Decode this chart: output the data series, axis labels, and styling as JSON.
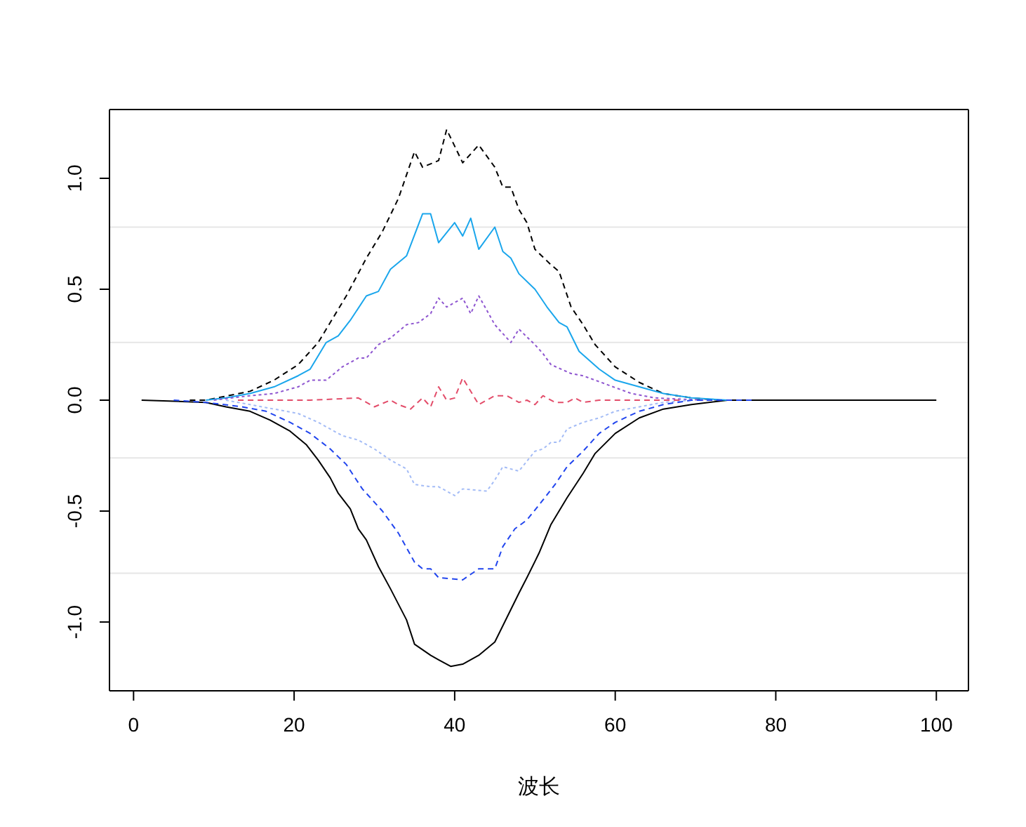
{
  "chart_data": {
    "type": "line",
    "xlabel": "波长",
    "xlim": [
      -3,
      104
    ],
    "xticks": [
      0,
      20,
      40,
      60,
      80,
      100
    ],
    "ylim": [
      -1.31,
      1.31
    ],
    "yticks": [
      {
        "value": -1,
        "label": "-1.0"
      },
      {
        "value": -0.5,
        "label": "-0.5"
      },
      {
        "value": 0,
        "label": "0.0"
      },
      {
        "value": 0.5,
        "label": "0.5"
      },
      {
        "value": 1,
        "label": "1.0"
      }
    ],
    "ref_lines": [
      {
        "axis": "y",
        "value": 0.78,
        "color": "#e6e6e6"
      },
      {
        "axis": "y",
        "value": 0.26,
        "color": "#e6e6e6"
      },
      {
        "axis": "y",
        "value": -0.26,
        "color": "#e6e6e6"
      },
      {
        "axis": "y",
        "value": -0.78,
        "color": "#e6e6e6"
      }
    ],
    "series": [
      {
        "color": "#000000",
        "line_style": "solid",
        "x": [
          1,
          9,
          11.5,
          14.5,
          17,
          19.5,
          21.5,
          23,
          24.5,
          25.5,
          27,
          28,
          29,
          30.5,
          32,
          34,
          35,
          37,
          38,
          39.5,
          41,
          43,
          45,
          46.5,
          48,
          49,
          50.5,
          52,
          54,
          56,
          57.5,
          60,
          63,
          66,
          69.5,
          74,
          100
        ],
        "values": [
          0,
          -0.01,
          -0.03,
          -0.05,
          -0.09,
          -0.14,
          -0.2,
          -0.27,
          -0.35,
          -0.42,
          -0.49,
          -0.58,
          -0.63,
          -0.75,
          -0.85,
          -0.99,
          -1.1,
          -1.15,
          -1.17,
          -1.2,
          -1.19,
          -1.15,
          -1.09,
          -0.98,
          -0.87,
          -0.8,
          -0.69,
          -0.56,
          -0.44,
          -0.33,
          -0.24,
          -0.15,
          -0.08,
          -0.04,
          -0.02,
          0,
          0
        ]
      },
      {
        "color": "#000000",
        "line_style": "dashed",
        "x": [
          7,
          9,
          14.5,
          17.5,
          20.5,
          23,
          26.5,
          29,
          31,
          33,
          35,
          36,
          38,
          39,
          41,
          43,
          45,
          46,
          47,
          48,
          49,
          50,
          52,
          53,
          54.5,
          56,
          57.5,
          60,
          63,
          66,
          69.5,
          73
        ],
        "values": [
          0,
          0,
          0.04,
          0.09,
          0.16,
          0.26,
          0.47,
          0.64,
          0.76,
          0.91,
          1.12,
          1.05,
          1.08,
          1.22,
          1.07,
          1.15,
          1.05,
          0.96,
          0.96,
          0.86,
          0.8,
          0.68,
          0.61,
          0.58,
          0.42,
          0.34,
          0.25,
          0.15,
          0.08,
          0.03,
          0.01,
          0
        ]
      },
      {
        "color": "#1aa6ec",
        "line_style": "solid",
        "x": [
          9,
          11.5,
          14.5,
          17.5,
          20.5,
          22,
          24,
          25.5,
          27,
          29,
          30.5,
          32,
          34,
          36,
          37,
          38,
          40,
          41,
          42,
          43,
          45,
          46,
          47,
          48,
          50,
          51.5,
          53,
          54,
          55.5,
          58,
          60,
          63,
          66,
          69.5,
          74
        ],
        "values": [
          0,
          0.01,
          0.03,
          0.06,
          0.11,
          0.14,
          0.26,
          0.29,
          0.36,
          0.47,
          0.49,
          0.59,
          0.65,
          0.84,
          0.84,
          0.71,
          0.8,
          0.74,
          0.82,
          0.68,
          0.78,
          0.67,
          0.64,
          0.57,
          0.5,
          0.42,
          0.35,
          0.33,
          0.22,
          0.14,
          0.09,
          0.06,
          0.03,
          0.01,
          0
        ]
      },
      {
        "color": "#8e55d0",
        "line_style": "dotted",
        "x": [
          10,
          14.5,
          17.5,
          20.5,
          22,
          24,
          26,
          28,
          29,
          30.5,
          32,
          34,
          35.5,
          37,
          38,
          39,
          41,
          42,
          43,
          45,
          47,
          48,
          50,
          51,
          52,
          54.5,
          56,
          59,
          62,
          65,
          71
        ],
        "values": [
          0,
          0.02,
          0.03,
          0.06,
          0.09,
          0.09,
          0.15,
          0.19,
          0.19,
          0.25,
          0.28,
          0.34,
          0.35,
          0.39,
          0.46,
          0.42,
          0.46,
          0.39,
          0.47,
          0.34,
          0.26,
          0.32,
          0.25,
          0.21,
          0.16,
          0.12,
          0.11,
          0.07,
          0.03,
          0.01,
          0
        ]
      },
      {
        "color": "#a4bcf6",
        "line_style": "dotted",
        "x": [
          11.5,
          14.5,
          17.5,
          20.5,
          23,
          26,
          28,
          30,
          32,
          34,
          35,
          37,
          38,
          40,
          41,
          44,
          45,
          46,
          48,
          50,
          51,
          52,
          53,
          54,
          56,
          58,
          60,
          63,
          66,
          69.5
        ],
        "values": [
          0,
          -0.02,
          -0.04,
          -0.06,
          -0.1,
          -0.16,
          -0.18,
          -0.22,
          -0.27,
          -0.31,
          -0.38,
          -0.39,
          -0.39,
          -0.43,
          -0.4,
          -0.41,
          -0.36,
          -0.3,
          -0.32,
          -0.23,
          -0.22,
          -0.19,
          -0.19,
          -0.13,
          -0.1,
          -0.08,
          -0.05,
          -0.03,
          -0.01,
          0
        ]
      },
      {
        "color": "#2145ee",
        "line_style": "dashed",
        "x": [
          5,
          9,
          13.5,
          16.5,
          19.5,
          22,
          24.5,
          26.5,
          28.5,
          31,
          33,
          35,
          36,
          37,
          38,
          41,
          43,
          45,
          46,
          47.5,
          49,
          51,
          52.5,
          54,
          56,
          58,
          60,
          63,
          66,
          69.5,
          77
        ],
        "values": [
          0,
          -0.01,
          -0.03,
          -0.05,
          -0.1,
          -0.15,
          -0.22,
          -0.29,
          -0.4,
          -0.5,
          -0.6,
          -0.73,
          -0.76,
          -0.76,
          -0.8,
          -0.81,
          -0.76,
          -0.76,
          -0.66,
          -0.58,
          -0.54,
          -0.45,
          -0.38,
          -0.3,
          -0.23,
          -0.15,
          -0.1,
          -0.05,
          -0.02,
          0,
          0
        ]
      },
      {
        "color": "#e34d6a",
        "line_style": "dashed",
        "x": [
          13,
          22,
          28,
          30,
          32,
          33,
          34.5,
          36,
          37,
          38,
          39,
          40,
          41,
          43,
          45,
          46.5,
          48,
          49,
          50,
          51,
          52.5,
          54,
          55,
          56,
          58,
          68
        ],
        "values": [
          0,
          0,
          0.01,
          -0.03,
          0,
          -0.02,
          -0.04,
          0.01,
          -0.03,
          0.06,
          0,
          0.01,
          0.1,
          -0.02,
          0.02,
          0.02,
          -0.01,
          0,
          -0.02,
          0.02,
          -0.01,
          -0.01,
          0.01,
          -0.01,
          0,
          0
        ]
      }
    ]
  }
}
